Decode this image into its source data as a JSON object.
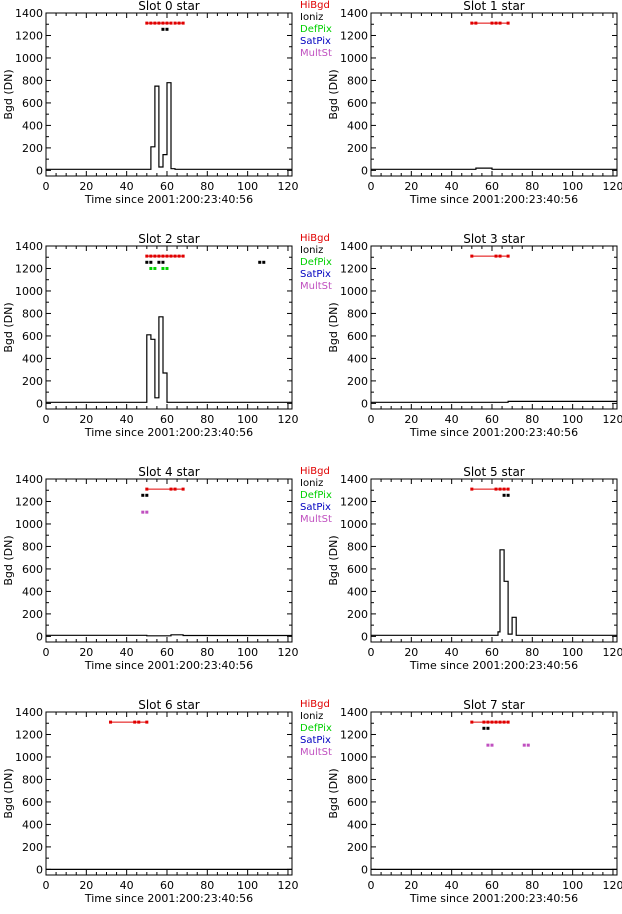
{
  "legend": [
    {
      "label": "HiBgd",
      "color": "#e00000"
    },
    {
      "label": "Ioniz",
      "color": "#000000"
    },
    {
      "label": "DefPix",
      "color": "#00d000"
    },
    {
      "label": "SatPix",
      "color": "#0000c0"
    },
    {
      "label": "MultSt",
      "color": "#c050c0"
    }
  ],
  "chart_data": [
    {
      "type": "line",
      "title": "Slot 0 star",
      "xlabel": "Time since 2001:200:23:40:56",
      "ylabel": "Bgd (DN)",
      "xlim": [
        0,
        122
      ],
      "ylim": [
        -50,
        1400
      ],
      "xticks": [
        0,
        20,
        40,
        60,
        80,
        100,
        120
      ],
      "yticks": [
        0,
        200,
        400,
        600,
        800,
        1000,
        1200,
        1400
      ],
      "series": [
        {
          "values": [
            [
              0,
              10
            ],
            [
              52,
              10
            ],
            [
              52,
              210
            ],
            [
              54,
              210
            ],
            [
              54,
              750
            ],
            [
              56,
              750
            ],
            [
              56,
              30
            ],
            [
              58,
              30
            ],
            [
              58,
              140
            ],
            [
              60,
              140
            ],
            [
              60,
              780
            ],
            [
              62,
              780
            ],
            [
              62,
              15
            ],
            [
              64,
              15
            ],
            [
              64,
              10
            ],
            [
              122,
              10
            ]
          ]
        }
      ],
      "flags": [
        {
          "flag": "HiBgd",
          "y": 1310,
          "x": [
            50,
            52,
            54,
            56,
            58,
            60,
            62,
            64,
            66,
            68
          ],
          "line": [
            [
              50,
              62
            ],
            [
              64,
              68
            ]
          ]
        },
        {
          "flag": "Ioniz",
          "y": 1255,
          "x": [
            58,
            60
          ],
          "line": []
        }
      ]
    },
    {
      "type": "line",
      "title": "Slot 1 star",
      "xlabel": "Time since 2001:200:23:40:56",
      "ylabel": "Bgd (DN)",
      "xlim": [
        0,
        122
      ],
      "ylim": [
        -50,
        1400
      ],
      "xticks": [
        0,
        20,
        40,
        60,
        80,
        100,
        120
      ],
      "yticks": [
        0,
        200,
        400,
        600,
        800,
        1000,
        1200,
        1400
      ],
      "series": [
        {
          "values": [
            [
              0,
              10
            ],
            [
              52,
              10
            ],
            [
              52,
              20
            ],
            [
              60,
              20
            ],
            [
              60,
              10
            ],
            [
              122,
              10
            ]
          ]
        }
      ],
      "flags": [
        {
          "flag": "HiBgd",
          "y": 1310,
          "x": [
            50,
            52,
            60,
            62,
            64,
            68
          ],
          "line": [
            [
              50,
              68
            ]
          ]
        }
      ]
    },
    {
      "type": "line",
      "title": "Slot 2 star",
      "xlabel": "Time since 2001:200:23:40:56",
      "ylabel": "Bgd (DN)",
      "xlim": [
        0,
        122
      ],
      "ylim": [
        -50,
        1400
      ],
      "xticks": [
        0,
        20,
        40,
        60,
        80,
        100,
        120
      ],
      "yticks": [
        0,
        200,
        400,
        600,
        800,
        1000,
        1200,
        1400
      ],
      "series": [
        {
          "values": [
            [
              0,
              10
            ],
            [
              50,
              10
            ],
            [
              50,
              610
            ],
            [
              52,
              610
            ],
            [
              52,
              570
            ],
            [
              54,
              570
            ],
            [
              54,
              50
            ],
            [
              56,
              50
            ],
            [
              56,
              770
            ],
            [
              58,
              770
            ],
            [
              58,
              270
            ],
            [
              60,
              270
            ],
            [
              60,
              10
            ],
            [
              122,
              10
            ]
          ]
        }
      ],
      "flags": [
        {
          "flag": "HiBgd",
          "y": 1310,
          "x": [
            50,
            52,
            54,
            56,
            58,
            60,
            62,
            64,
            66,
            68
          ],
          "line": [
            [
              50,
              68
            ]
          ]
        },
        {
          "flag": "Ioniz",
          "y": 1255,
          "x": [
            50,
            52,
            56,
            58,
            106,
            108
          ],
          "line": []
        },
        {
          "flag": "DefPix",
          "y": 1200,
          "x": [
            52,
            54,
            58,
            60
          ],
          "line": []
        }
      ]
    },
    {
      "type": "line",
      "title": "Slot 3 star",
      "xlabel": "Time since 2001:200:23:40:56",
      "ylabel": "Bgd (DN)",
      "xlim": [
        0,
        122
      ],
      "ylim": [
        -50,
        1400
      ],
      "xticks": [
        0,
        20,
        40,
        60,
        80,
        100,
        120
      ],
      "yticks": [
        0,
        200,
        400,
        600,
        800,
        1000,
        1200,
        1400
      ],
      "series": [
        {
          "values": [
            [
              0,
              10
            ],
            [
              68,
              10
            ],
            [
              68,
              18
            ],
            [
              122,
              18
            ]
          ]
        }
      ],
      "flags": [
        {
          "flag": "HiBgd",
          "y": 1310,
          "x": [
            50,
            62,
            64,
            68
          ],
          "line": [
            [
              50,
              68
            ]
          ]
        }
      ]
    },
    {
      "type": "line",
      "title": "Slot 4 star",
      "xlabel": "Time since 2001:200:23:40:56",
      "ylabel": "Bgd (DN)",
      "xlim": [
        0,
        122
      ],
      "ylim": [
        -50,
        1400
      ],
      "xticks": [
        0,
        20,
        40,
        60,
        80,
        100,
        120
      ],
      "yticks": [
        0,
        200,
        400,
        600,
        800,
        1000,
        1200,
        1400
      ],
      "series": [
        {
          "values": [
            [
              0,
              10
            ],
            [
              50,
              10
            ],
            [
              50,
              5
            ],
            [
              62,
              5
            ],
            [
              62,
              14
            ],
            [
              68,
              14
            ],
            [
              68,
              8
            ],
            [
              122,
              8
            ]
          ]
        }
      ],
      "flags": [
        {
          "flag": "HiBgd",
          "y": 1310,
          "x": [
            50,
            62,
            64,
            68
          ],
          "line": [
            [
              50,
              68
            ]
          ]
        },
        {
          "flag": "Ioniz",
          "y": 1255,
          "x": [
            48,
            50
          ],
          "line": []
        },
        {
          "flag": "MultSt",
          "y": 1105,
          "x": [
            48,
            50
          ],
          "line": []
        }
      ]
    },
    {
      "type": "line",
      "title": "Slot 5 star",
      "xlabel": "Time since 2001:200:23:40:56",
      "ylabel": "Bgd (DN)",
      "xlim": [
        0,
        122
      ],
      "ylim": [
        -50,
        1400
      ],
      "xticks": [
        0,
        20,
        40,
        60,
        80,
        100,
        120
      ],
      "yticks": [
        0,
        200,
        400,
        600,
        800,
        1000,
        1200,
        1400
      ],
      "series": [
        {
          "values": [
            [
              0,
              10
            ],
            [
              63,
              10
            ],
            [
              63,
              40
            ],
            [
              64,
              40
            ],
            [
              64,
              770
            ],
            [
              66,
              770
            ],
            [
              66,
              490
            ],
            [
              68,
              490
            ],
            [
              68,
              20
            ],
            [
              70,
              20
            ],
            [
              70,
              170
            ],
            [
              72,
              170
            ],
            [
              72,
              10
            ],
            [
              122,
              10
            ]
          ]
        }
      ],
      "flags": [
        {
          "flag": "HiBgd",
          "y": 1310,
          "x": [
            50,
            62,
            64,
            66,
            68
          ],
          "line": [
            [
              50,
              68
            ]
          ]
        },
        {
          "flag": "Ioniz",
          "y": 1255,
          "x": [
            66,
            68
          ],
          "line": []
        }
      ]
    },
    {
      "type": "line",
      "title": "Slot 6 star",
      "xlabel": "Time since 2001:200:23:40:56",
      "ylabel": "Bgd (DN)",
      "xlim": [
        0,
        122
      ],
      "ylim": [
        -50,
        1400
      ],
      "xticks": [
        0,
        20,
        40,
        60,
        80,
        100,
        120
      ],
      "yticks": [
        0,
        200,
        400,
        600,
        800,
        1000,
        1200,
        1400
      ],
      "series": [
        {
          "values": [
            [
              0,
              0
            ],
            [
              122,
              0
            ]
          ]
        }
      ],
      "flags": [
        {
          "flag": "HiBgd",
          "y": 1310,
          "x": [
            32,
            44,
            46,
            50
          ],
          "line": [
            [
              32,
              50
            ]
          ]
        }
      ]
    },
    {
      "type": "line",
      "title": "Slot 7 star",
      "xlabel": "Time since 2001:200:23:40:56",
      "ylabel": "Bgd (DN)",
      "xlim": [
        0,
        122
      ],
      "ylim": [
        -50,
        1400
      ],
      "xticks": [
        0,
        20,
        40,
        60,
        80,
        100,
        120
      ],
      "yticks": [
        0,
        200,
        400,
        600,
        800,
        1000,
        1200,
        1400
      ],
      "series": [
        {
          "values": [
            [
              0,
              0
            ],
            [
              122,
              0
            ]
          ]
        }
      ],
      "flags": [
        {
          "flag": "HiBgd",
          "y": 1310,
          "x": [
            50,
            56,
            58,
            60,
            62,
            64,
            66,
            68
          ],
          "line": [
            [
              50,
              68
            ]
          ]
        },
        {
          "flag": "Ioniz",
          "y": 1255,
          "x": [
            56,
            58
          ],
          "line": []
        },
        {
          "flag": "MultSt",
          "y": 1105,
          "x": [
            58,
            60,
            76,
            78
          ],
          "line": []
        }
      ]
    }
  ]
}
